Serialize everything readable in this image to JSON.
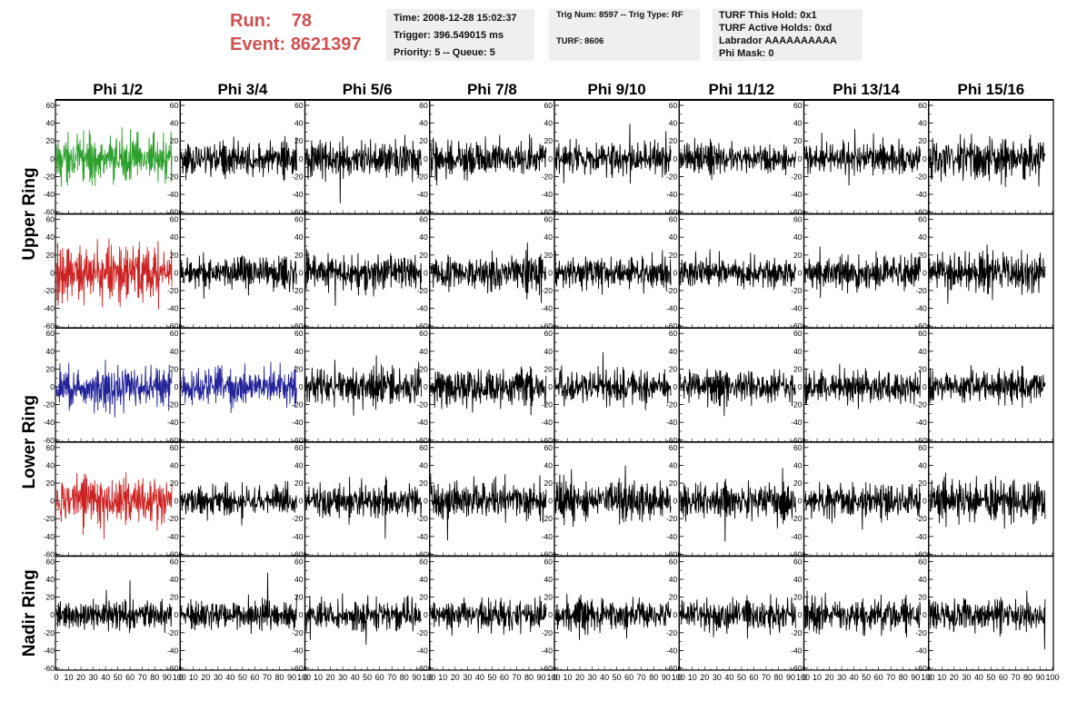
{
  "header": {
    "run_label": "Run:",
    "run_value": "78",
    "event_label": "Event:",
    "event_value": "8621397"
  },
  "info_time": {
    "time": "Time: 2008-12-28 15:02:37",
    "trigger": "Trigger: 396.549015 ms",
    "priority": "Priority: 5 -- Queue: 5"
  },
  "info_trig": {
    "trig": "Trig Num: 8597 -- Trig Type: RF",
    "turf": "TURF: 8606"
  },
  "info_turf": {
    "this_hold": "TURF This Hold: 0x1",
    "active_holds": "TURF Active Holds: 0xd",
    "labrador": "Labrador AAAAAAAAAA",
    "phi_mask": "Phi Mask: 0"
  },
  "chart_data": {
    "type": "line",
    "columns": [
      "Phi 1/2",
      "Phi 3/4",
      "Phi 5/6",
      "Phi 7/8",
      "Phi 9/10",
      "Phi 11/12",
      "Phi 13/14",
      "Phi 15/16"
    ],
    "row_groups": [
      {
        "label": "Upper Ring",
        "rows": [
          0,
          1
        ]
      },
      {
        "label": "Lower Ring",
        "rows": [
          2,
          3
        ]
      },
      {
        "label": "Nadir Ring",
        "rows": [
          4
        ]
      }
    ],
    "ylim": [
      -60,
      60
    ],
    "xlim": [
      0,
      100
    ],
    "y_ticks": [
      60,
      40,
      20,
      0,
      -20,
      -40,
      -60
    ],
    "x_ticks": [
      0,
      10,
      20,
      30,
      40,
      50,
      60,
      70,
      80,
      90,
      100
    ],
    "n_samples": 260,
    "trace_colors": [
      [
        "#2ca02c",
        "#000000",
        "#000000",
        "#000000",
        "#000000",
        "#000000",
        "#000000",
        "#000000"
      ],
      [
        "#cc2222",
        "#000000",
        "#000000",
        "#000000",
        "#000000",
        "#000000",
        "#000000",
        "#000000"
      ],
      [
        "#222299",
        "#222299",
        "#000000",
        "#000000",
        "#000000",
        "#000000",
        "#000000",
        "#000000"
      ],
      [
        "#cc2222",
        "#000000",
        "#000000",
        "#000000",
        "#000000",
        "#000000",
        "#000000",
        "#000000"
      ],
      [
        "#000000",
        "#000000",
        "#000000",
        "#000000",
        "#000000",
        "#000000",
        "#000000",
        "#000000"
      ]
    ],
    "trace_amplitude": [
      [
        14,
        10,
        11,
        11,
        10,
        9,
        10,
        13
      ],
      [
        16,
        10,
        11,
        11,
        10,
        9,
        10,
        11
      ],
      [
        13,
        11,
        11,
        11,
        10,
        10,
        10,
        10
      ],
      [
        14,
        9,
        10,
        11,
        11,
        10,
        10,
        12
      ],
      [
        9,
        9,
        9,
        9,
        9,
        10,
        10,
        10
      ]
    ]
  }
}
